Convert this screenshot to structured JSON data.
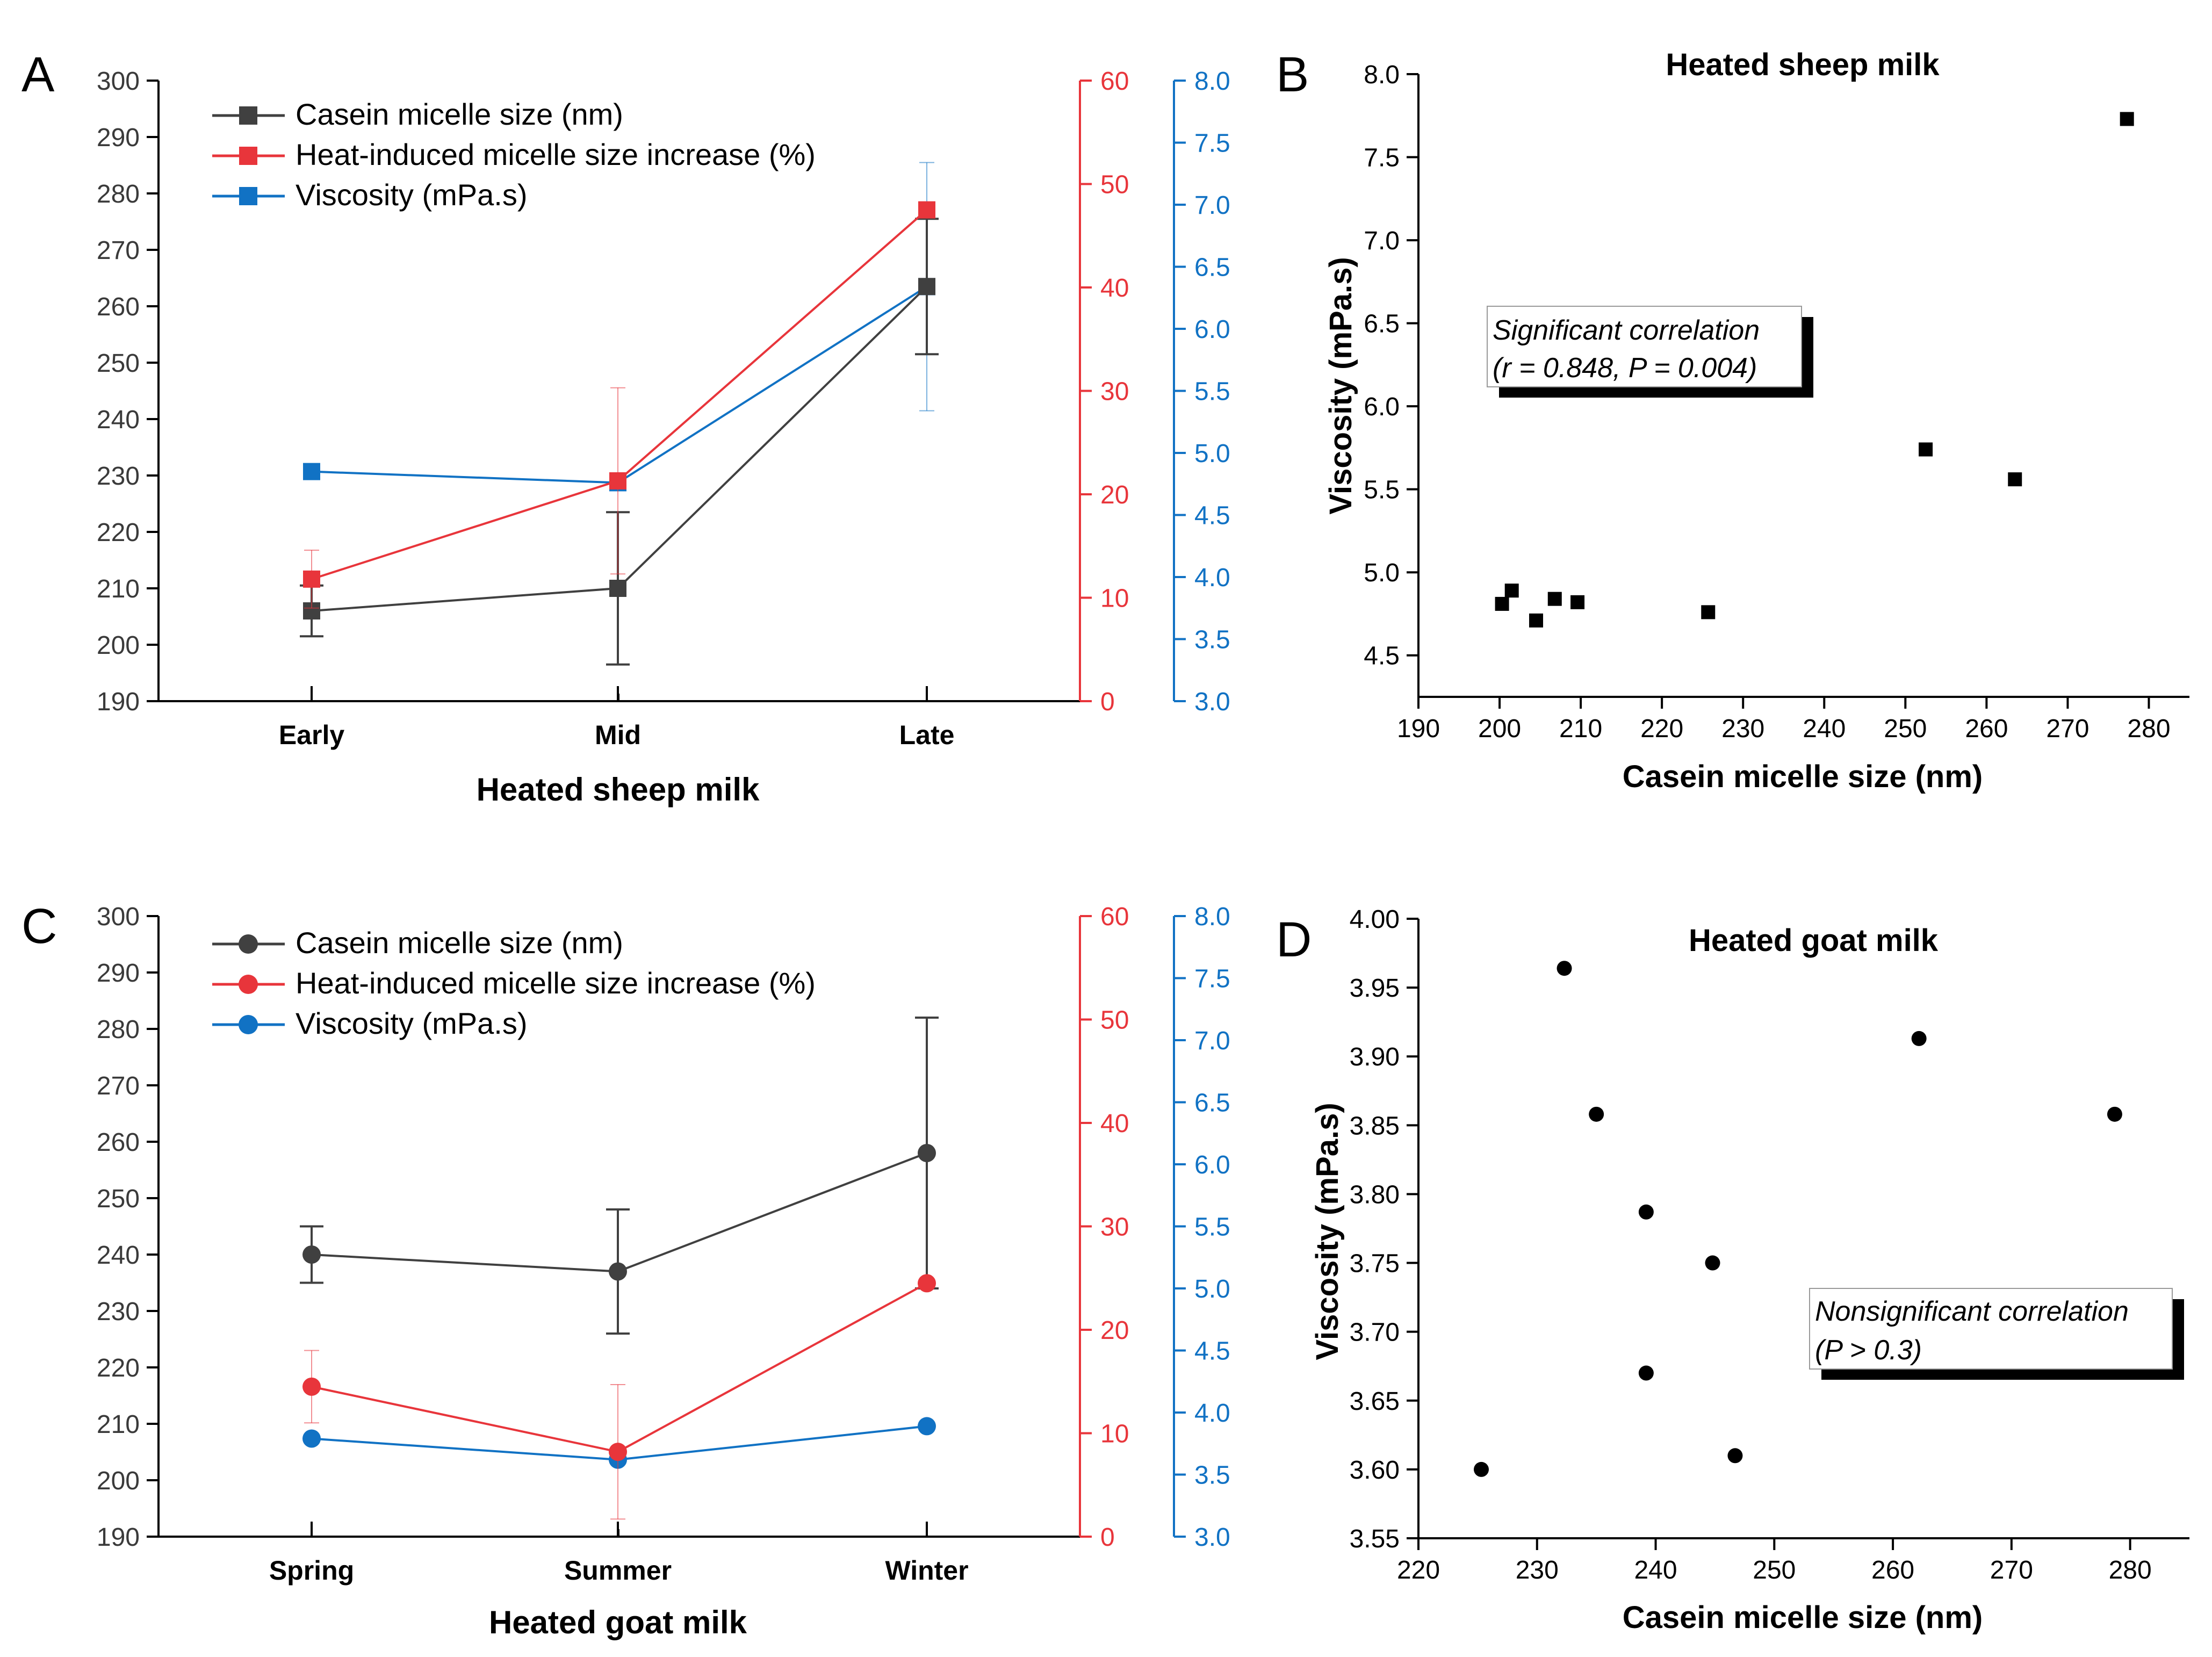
{
  "figure": {
    "panels": [
      {
        "letter": "A",
        "xlabel": "Heated sheep milk"
      },
      {
        "letter": "B",
        "title": "Heated sheep milk",
        "xlabel": "Casein micelle size (nm)",
        "ylabel": "Viscosity (mPa.s)",
        "annotation": [
          "Significant correlation",
          "(r = 0.848, P = 0.004)"
        ]
      },
      {
        "letter": "C",
        "xlabel": "Heated goat milk"
      },
      {
        "letter": "D",
        "title": "Heated goat milk",
        "xlabel": "Casein micelle size (nm)",
        "ylabel": "Viscosity (mPa.s)",
        "annotation": [
          "Nonsignificant correlation",
          "(P > 0.3)"
        ]
      }
    ]
  },
  "chart_data": [
    {
      "id": "A",
      "type": "line",
      "title": "",
      "xlabel": "Heated sheep milk",
      "categories": [
        "Early",
        "Mid",
        "Late"
      ],
      "marker": "square",
      "axes": {
        "left": {
          "ylim": [
            190,
            300
          ],
          "ticks": [
            190,
            200,
            210,
            220,
            230,
            240,
            250,
            260,
            270,
            280,
            290,
            300
          ],
          "color": "#000000"
        },
        "red": {
          "ylim": [
            0,
            60
          ],
          "ticks": [
            0,
            10,
            20,
            30,
            40,
            50,
            60
          ],
          "color": "#e8353b"
        },
        "blue": {
          "ylim": [
            3.0,
            8.0
          ],
          "ticks": [
            "3.0",
            "3.5",
            "4.0",
            "4.5",
            "5.0",
            "5.5",
            "6.0",
            "6.5",
            "7.0",
            "7.5",
            "8.0"
          ],
          "color": "#1172c4"
        }
      },
      "series": [
        {
          "name": "Casein micelle size (nm)",
          "axis": "left",
          "color": "#404040",
          "values": [
            206,
            210,
            263.5
          ],
          "errors": [
            4.5,
            13.5,
            12
          ]
        },
        {
          "name": "Heat-induced micelle size increase (%)",
          "axis": "red",
          "color": "#e8353b",
          "values": [
            11.8,
            21.3,
            47.5
          ],
          "errors": [
            2.8,
            9,
            0
          ]
        },
        {
          "name": "Viscosity (mPa.s)",
          "axis": "blue",
          "color": "#1172c4",
          "values": [
            4.85,
            4.76,
            6.34
          ],
          "errors": [
            0,
            0,
            1.0
          ]
        }
      ]
    },
    {
      "id": "B",
      "type": "scatter",
      "title": "Heated sheep milk",
      "xlabel": "Casein micelle size (nm)",
      "ylabel": "Viscosity (mPa.s)",
      "marker": "square",
      "xlim": [
        190,
        285
      ],
      "xticks": [
        190,
        200,
        210,
        220,
        230,
        240,
        250,
        260,
        270,
        280
      ],
      "ylim": [
        4.25,
        8.0
      ],
      "yticks": [
        "4.5",
        "5.0",
        "5.5",
        "6.0",
        "6.5",
        "7.0",
        "7.5",
        "8.0"
      ],
      "x": [
        200.3,
        201.5,
        204.5,
        206.8,
        209.6,
        225.7,
        252.5,
        263.5,
        277.3
      ],
      "y": [
        4.81,
        4.89,
        4.71,
        4.84,
        4.82,
        4.76,
        5.74,
        5.56,
        7.73
      ]
    },
    {
      "id": "C",
      "type": "line",
      "title": "",
      "xlabel": "Heated goat milk",
      "categories": [
        "Spring",
        "Summer",
        "Winter"
      ],
      "marker": "circle",
      "axes": {
        "left": {
          "ylim": [
            190,
            300
          ],
          "ticks": [
            190,
            200,
            210,
            220,
            230,
            240,
            250,
            260,
            270,
            280,
            290,
            300
          ],
          "color": "#000000"
        },
        "red": {
          "ylim": [
            0,
            60
          ],
          "ticks": [
            0,
            10,
            20,
            30,
            40,
            50,
            60
          ],
          "color": "#e8353b"
        },
        "blue": {
          "ylim": [
            3.0,
            8.0
          ],
          "ticks": [
            "3.0",
            "3.5",
            "4.0",
            "4.5",
            "5.0",
            "5.5",
            "6.0",
            "6.5",
            "7.0",
            "7.5",
            "8.0"
          ],
          "color": "#1172c4"
        }
      },
      "series": [
        {
          "name": "Casein micelle size (nm)",
          "axis": "left",
          "color": "#404040",
          "values": [
            240,
            237,
            258
          ],
          "errors": [
            5,
            11,
            24
          ]
        },
        {
          "name": "Heat-induced micelle size increase (%)",
          "axis": "red",
          "color": "#e8353b",
          "values": [
            14.5,
            8.2,
            24.5
          ],
          "errors": [
            3.5,
            6.5,
            0
          ]
        },
        {
          "name": "Viscosity (mPa.s)",
          "axis": "blue",
          "color": "#1172c4",
          "values": [
            3.79,
            3.62,
            3.89
          ],
          "errors": [
            0,
            0,
            0
          ]
        }
      ]
    },
    {
      "id": "D",
      "type": "scatter",
      "title": "Heated goat milk",
      "xlabel": "Casein micelle size (nm)",
      "ylabel": "Viscosity (mPa.s)",
      "marker": "circle",
      "xlim": [
        220,
        285
      ],
      "xticks": [
        220,
        230,
        240,
        250,
        260,
        270,
        280
      ],
      "ylim": [
        3.55,
        4.0
      ],
      "yticks": [
        "3.55",
        "3.60",
        "3.65",
        "3.70",
        "3.75",
        "3.80",
        "3.85",
        "3.90",
        "3.95",
        "4.00"
      ],
      "x": [
        225.3,
        232.3,
        235.0,
        239.2,
        239.2,
        244.8,
        246.7,
        262.2,
        278.7
      ],
      "y": [
        3.6,
        3.964,
        3.858,
        3.787,
        3.67,
        3.75,
        3.61,
        3.913,
        3.858
      ]
    }
  ]
}
